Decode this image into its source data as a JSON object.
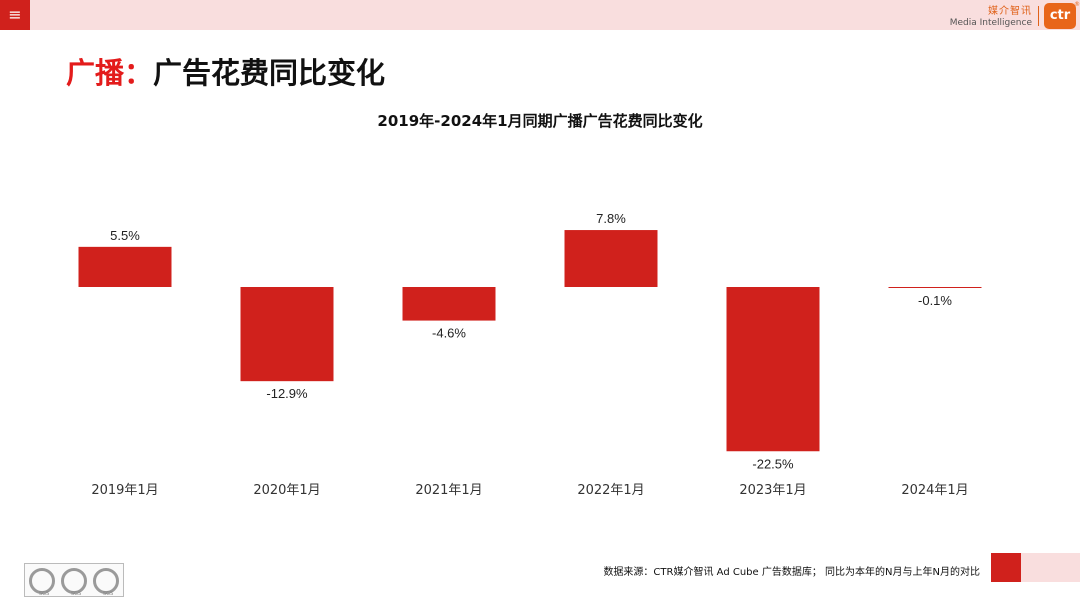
{
  "header": {
    "menu_icon": "≡",
    "brand_cn": "媒介智讯",
    "brand_en": "Media Intelligence",
    "logo_text": "ctr",
    "logo_mark": "®"
  },
  "page": {
    "title_highlight": "广播：",
    "title_rest": "广告花费同比变化"
  },
  "chart_data": {
    "type": "bar",
    "title": "2019年-2024年1月同期广播广告花费同比变化",
    "categories": [
      "2019年1月",
      "2020年1月",
      "2021年1月",
      "2022年1月",
      "2023年1月",
      "2024年1月"
    ],
    "values": [
      5.5,
      -12.9,
      -4.6,
      7.8,
      -22.5,
      -0.1
    ],
    "labels": [
      "5.5%",
      "-12.9%",
      "-4.6%",
      "7.8%",
      "-22.5%",
      "-0.1%"
    ],
    "unit": "%",
    "bar_color": "#d0211c",
    "grid": false,
    "legend": "none"
  },
  "footer": {
    "note": "数据来源：CTR媒介智讯 Ad Cube 广告数据库；  同比为本年的N月与上年N月的对比",
    "cert_labels": [
      "SGS",
      "SGS",
      "SGS"
    ]
  },
  "colors": {
    "accent_red": "#d0211c",
    "pink": "#f9dede",
    "brand_orange": "#e8651a"
  }
}
